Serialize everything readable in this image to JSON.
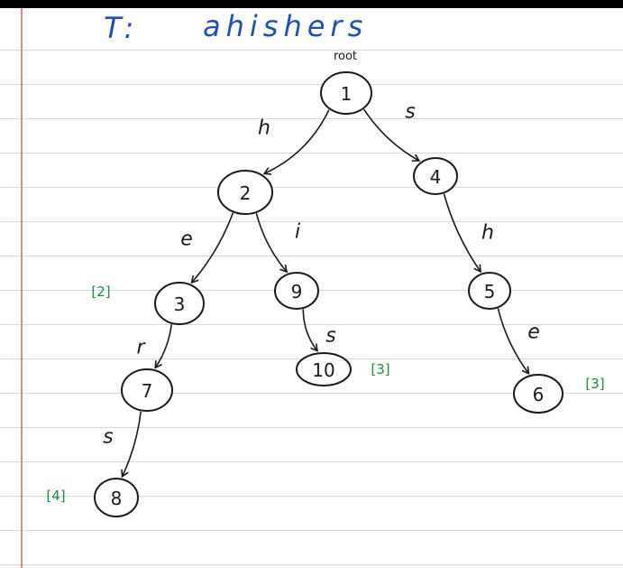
{
  "title": {
    "prefix": "T:",
    "word": "ahishers"
  },
  "root_label": "root",
  "colors": {
    "ink": "#1a1a1a",
    "title": "#1f4fb5",
    "annotation": "#1f8a3a",
    "rule": "#c9dcea",
    "margin": "#e58a8a"
  },
  "nodes": [
    {
      "id": "1",
      "label": "1"
    },
    {
      "id": "2",
      "label": "2"
    },
    {
      "id": "4",
      "label": "4"
    },
    {
      "id": "3",
      "label": "3"
    },
    {
      "id": "9",
      "label": "9"
    },
    {
      "id": "5",
      "label": "5"
    },
    {
      "id": "7",
      "label": "7"
    },
    {
      "id": "10",
      "label": "10"
    },
    {
      "id": "6",
      "label": "6"
    },
    {
      "id": "8",
      "label": "8"
    }
  ],
  "edges": [
    {
      "from": "1",
      "to": "2",
      "label": "h"
    },
    {
      "from": "1",
      "to": "4",
      "label": "s"
    },
    {
      "from": "2",
      "to": "3",
      "label": "e"
    },
    {
      "from": "2",
      "to": "9",
      "label": "i"
    },
    {
      "from": "4",
      "to": "5",
      "label": "h"
    },
    {
      "from": "3",
      "to": "7",
      "label": "r"
    },
    {
      "from": "9",
      "to": "10",
      "label": "s"
    },
    {
      "from": "5",
      "to": "6",
      "label": "e"
    },
    {
      "from": "7",
      "to": "8",
      "label": "s"
    }
  ],
  "annotations": [
    {
      "node": "3",
      "text": "[2]"
    },
    {
      "node": "10",
      "text": "[3]"
    },
    {
      "node": "6",
      "text": "[3]"
    },
    {
      "node": "8",
      "text": "[4]"
    }
  ]
}
